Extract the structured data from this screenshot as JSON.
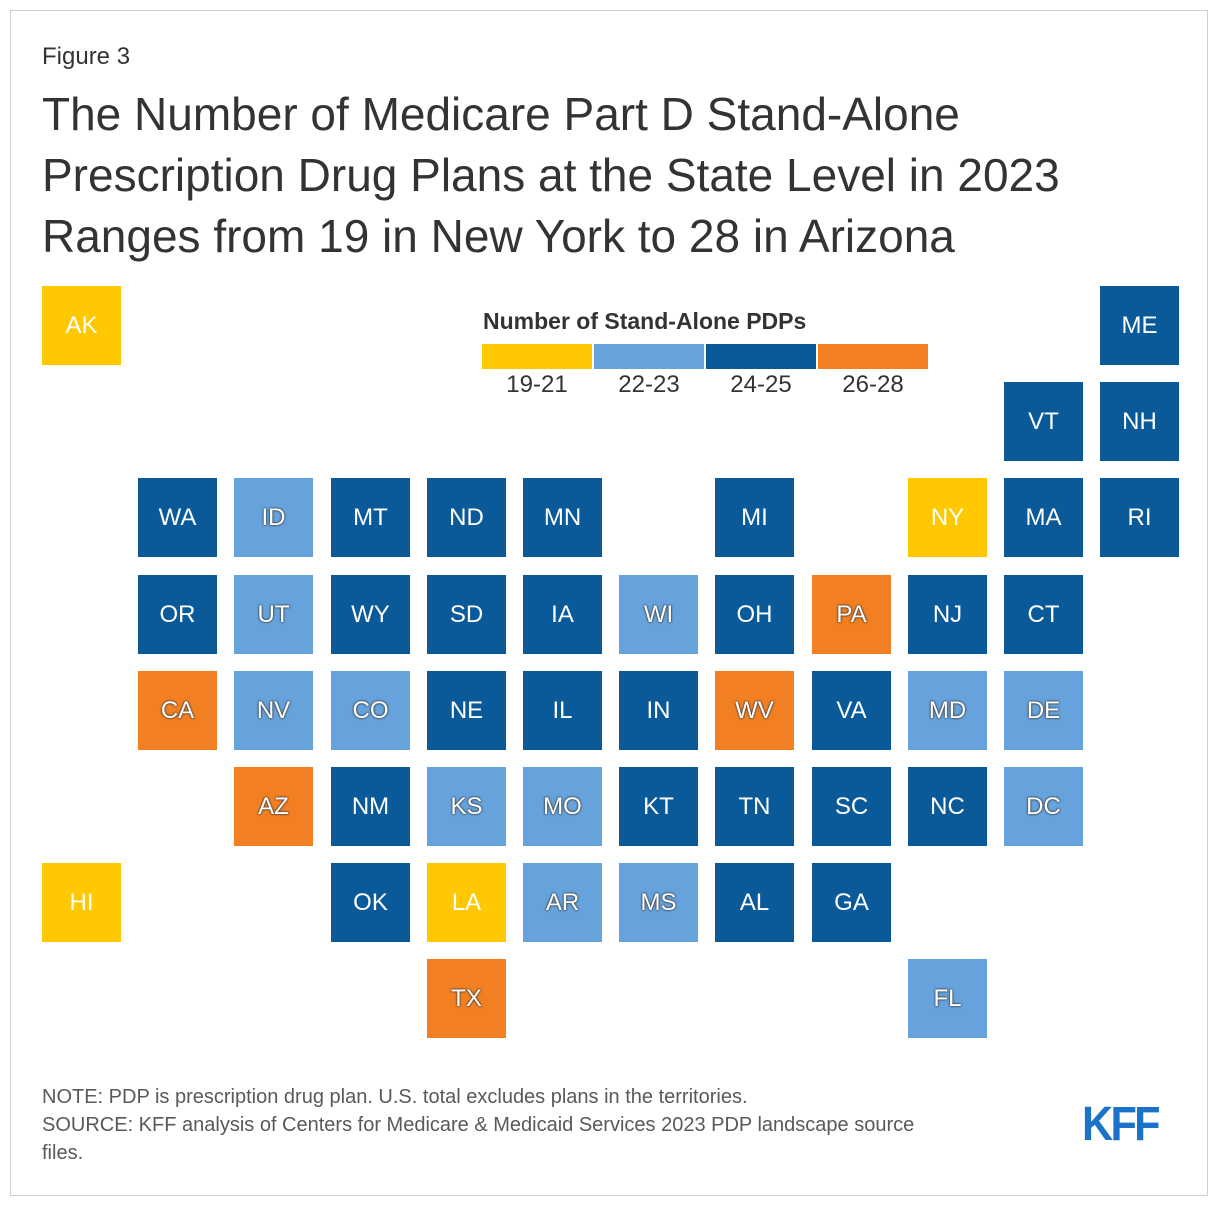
{
  "figure_label": "Figure 3",
  "title_lines": [
    "The Number of Medicare Part D Stand-Alone",
    "Prescription Drug Plans at the State Level in 2023",
    "Ranges from 19 in New York to 28 in Arizona"
  ],
  "legend": {
    "title": "Number of Stand-Alone PDPs",
    "bins": [
      {
        "label": "19-21",
        "color": "#ffc800"
      },
      {
        "label": "22-23",
        "color": "#66a3dc"
      },
      {
        "label": "24-25",
        "color": "#0a5a9a"
      },
      {
        "label": "26-28",
        "color": "#f28022"
      }
    ]
  },
  "chart_data": {
    "type": "tile-map",
    "title": "The Number of Medicare Part D Stand-Alone Prescription Drug Plans at the State Level in 2023 Ranges from 19 in New York to 28 in Arizona",
    "legend_title": "Number of Stand-Alone PDPs",
    "states": [
      {
        "abbr": "AK",
        "bin": "19-21"
      },
      {
        "abbr": "ME",
        "bin": "24-25"
      },
      {
        "abbr": "VT",
        "bin": "24-25"
      },
      {
        "abbr": "NH",
        "bin": "24-25"
      },
      {
        "abbr": "WA",
        "bin": "24-25"
      },
      {
        "abbr": "ID",
        "bin": "22-23"
      },
      {
        "abbr": "MT",
        "bin": "24-25"
      },
      {
        "abbr": "ND",
        "bin": "24-25"
      },
      {
        "abbr": "MN",
        "bin": "24-25"
      },
      {
        "abbr": "MI",
        "bin": "24-25"
      },
      {
        "abbr": "NY",
        "bin": "19-21"
      },
      {
        "abbr": "MA",
        "bin": "24-25"
      },
      {
        "abbr": "RI",
        "bin": "24-25"
      },
      {
        "abbr": "OR",
        "bin": "24-25"
      },
      {
        "abbr": "UT",
        "bin": "22-23"
      },
      {
        "abbr": "WY",
        "bin": "24-25"
      },
      {
        "abbr": "SD",
        "bin": "24-25"
      },
      {
        "abbr": "IA",
        "bin": "24-25"
      },
      {
        "abbr": "WI",
        "bin": "22-23"
      },
      {
        "abbr": "OH",
        "bin": "24-25"
      },
      {
        "abbr": "PA",
        "bin": "26-28"
      },
      {
        "abbr": "NJ",
        "bin": "24-25"
      },
      {
        "abbr": "CT",
        "bin": "24-25"
      },
      {
        "abbr": "CA",
        "bin": "26-28"
      },
      {
        "abbr": "NV",
        "bin": "22-23"
      },
      {
        "abbr": "CO",
        "bin": "22-23"
      },
      {
        "abbr": "NE",
        "bin": "24-25"
      },
      {
        "abbr": "IL",
        "bin": "24-25"
      },
      {
        "abbr": "IN",
        "bin": "24-25"
      },
      {
        "abbr": "WV",
        "bin": "26-28"
      },
      {
        "abbr": "VA",
        "bin": "24-25"
      },
      {
        "abbr": "MD",
        "bin": "22-23"
      },
      {
        "abbr": "DE",
        "bin": "22-23"
      },
      {
        "abbr": "AZ",
        "bin": "26-28"
      },
      {
        "abbr": "NM",
        "bin": "24-25"
      },
      {
        "abbr": "KS",
        "bin": "22-23"
      },
      {
        "abbr": "MO",
        "bin": "22-23"
      },
      {
        "abbr": "KT",
        "bin": "24-25"
      },
      {
        "abbr": "TN",
        "bin": "24-25"
      },
      {
        "abbr": "SC",
        "bin": "24-25"
      },
      {
        "abbr": "NC",
        "bin": "24-25"
      },
      {
        "abbr": "DC",
        "bin": "22-23"
      },
      {
        "abbr": "HI",
        "bin": "19-21"
      },
      {
        "abbr": "OK",
        "bin": "24-25"
      },
      {
        "abbr": "LA",
        "bin": "19-21"
      },
      {
        "abbr": "AR",
        "bin": "22-23"
      },
      {
        "abbr": "MS",
        "bin": "22-23"
      },
      {
        "abbr": "AL",
        "bin": "24-25"
      },
      {
        "abbr": "GA",
        "bin": "24-25"
      },
      {
        "abbr": "TX",
        "bin": "26-28"
      },
      {
        "abbr": "FL",
        "bin": "22-23"
      }
    ]
  },
  "note_lines": [
    "NOTE: PDP is prescription drug plan. U.S. total excludes plans in the territories.",
    "SOURCE: KFF analysis of Centers for Medicare & Medicaid Services 2023 PDP landscape source",
    "files."
  ],
  "logo_text": "KFF"
}
